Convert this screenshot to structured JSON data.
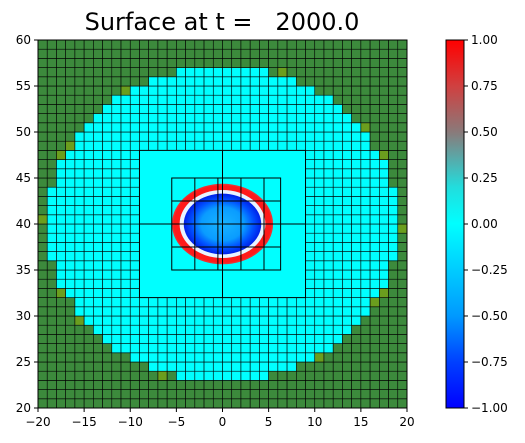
{
  "chart_data": {
    "type": "heatmap",
    "title": "Surface at t =   2000.0",
    "xlabel": "",
    "ylabel": "",
    "xlim": [
      -20,
      20
    ],
    "ylim": [
      20,
      60
    ],
    "xticks": [
      -20,
      -15,
      -10,
      -5,
      0,
      5,
      10,
      15,
      20
    ],
    "yticks": [
      20,
      25,
      30,
      35,
      40,
      45,
      50,
      55,
      60
    ],
    "grid": false,
    "colorbar": {
      "range": [
        -1.0,
        1.0
      ],
      "ticks": [
        "1.00",
        "0.75",
        "0.50",
        "0.25",
        "0.00",
        "−0.25",
        "−0.50",
        "−0.75",
        "−1.00"
      ],
      "tick_values": [
        1.0,
        0.75,
        0.5,
        0.25,
        0.0,
        -0.25,
        -0.5,
        -0.75,
        -1.0
      ]
    },
    "colors": {
      "land": "#3c8a3c",
      "land_light": "#6b9e1e",
      "water": "#00ffff",
      "grid_lines": "#000000"
    },
    "domain": {
      "region_center": [
        0,
        40
      ],
      "region_radii": [
        19,
        17
      ],
      "coarse_cell": 1.0
    },
    "refinement_patches": [
      {
        "level": 2,
        "x": [
          -9,
          9
        ],
        "y": [
          32,
          48
        ],
        "dx": 9,
        "dy": 8
      },
      {
        "level": 3,
        "x": [
          -5.5,
          6.3
        ],
        "y": [
          35,
          45
        ],
        "dx": 2.5,
        "dy": 2.5
      }
    ],
    "disturbance": {
      "center": [
        0,
        40
      ],
      "inner_radius_x": 4.2,
      "inner_radius_y": 3.3,
      "ring_radius_x": 5.4,
      "ring_radius_y": 4.3,
      "inner_value": -0.9,
      "ring_value": 1.0
    }
  }
}
